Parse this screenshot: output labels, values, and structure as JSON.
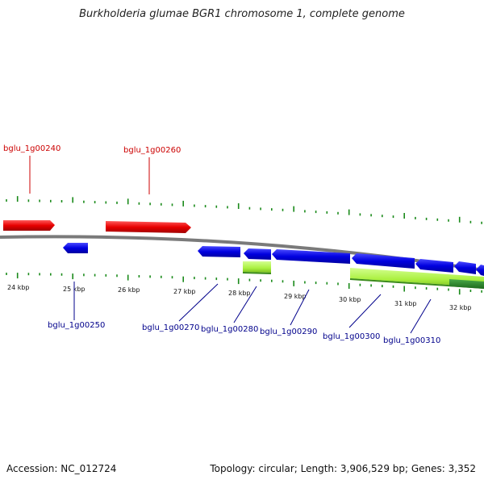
{
  "title": "Burkholderia glumae BGR1 chromosome 1, complete genome",
  "footer": {
    "accession": "Accession: NC_012724",
    "topology": "Topology: circular; Length: 3,906,529 bp; Genes: 3,352"
  },
  "colors": {
    "forward_gene": "#e80000",
    "reverse_gene": "#0000e0",
    "light_green": "#aaf040",
    "dark_green": "#2a8a2a",
    "tick_green": "#1a8a1a",
    "backbone": "#808080",
    "red_label": "#cc0000",
    "blue_label": "#00008b"
  },
  "kbp_labels": [
    "24 kbp",
    "25 kbp",
    "26 kbp",
    "27 kbp",
    "28 kbp",
    "29 kbp",
    "30 kbp",
    "31 kbp",
    "32 kbp"
  ],
  "gene_labels": {
    "bglu_1g00240": "bglu_1g00240",
    "bglu_1g00250": "bglu_1g00250",
    "bglu_1g00260": "bglu_1g00260",
    "bglu_1g00270": "bglu_1g00270",
    "bglu_1g00280": "bglu_1g00280",
    "bglu_1g00290": "bglu_1g00290",
    "bglu_1g00300": "bglu_1g00300",
    "bglu_1g00310": "bglu_1g00310"
  }
}
